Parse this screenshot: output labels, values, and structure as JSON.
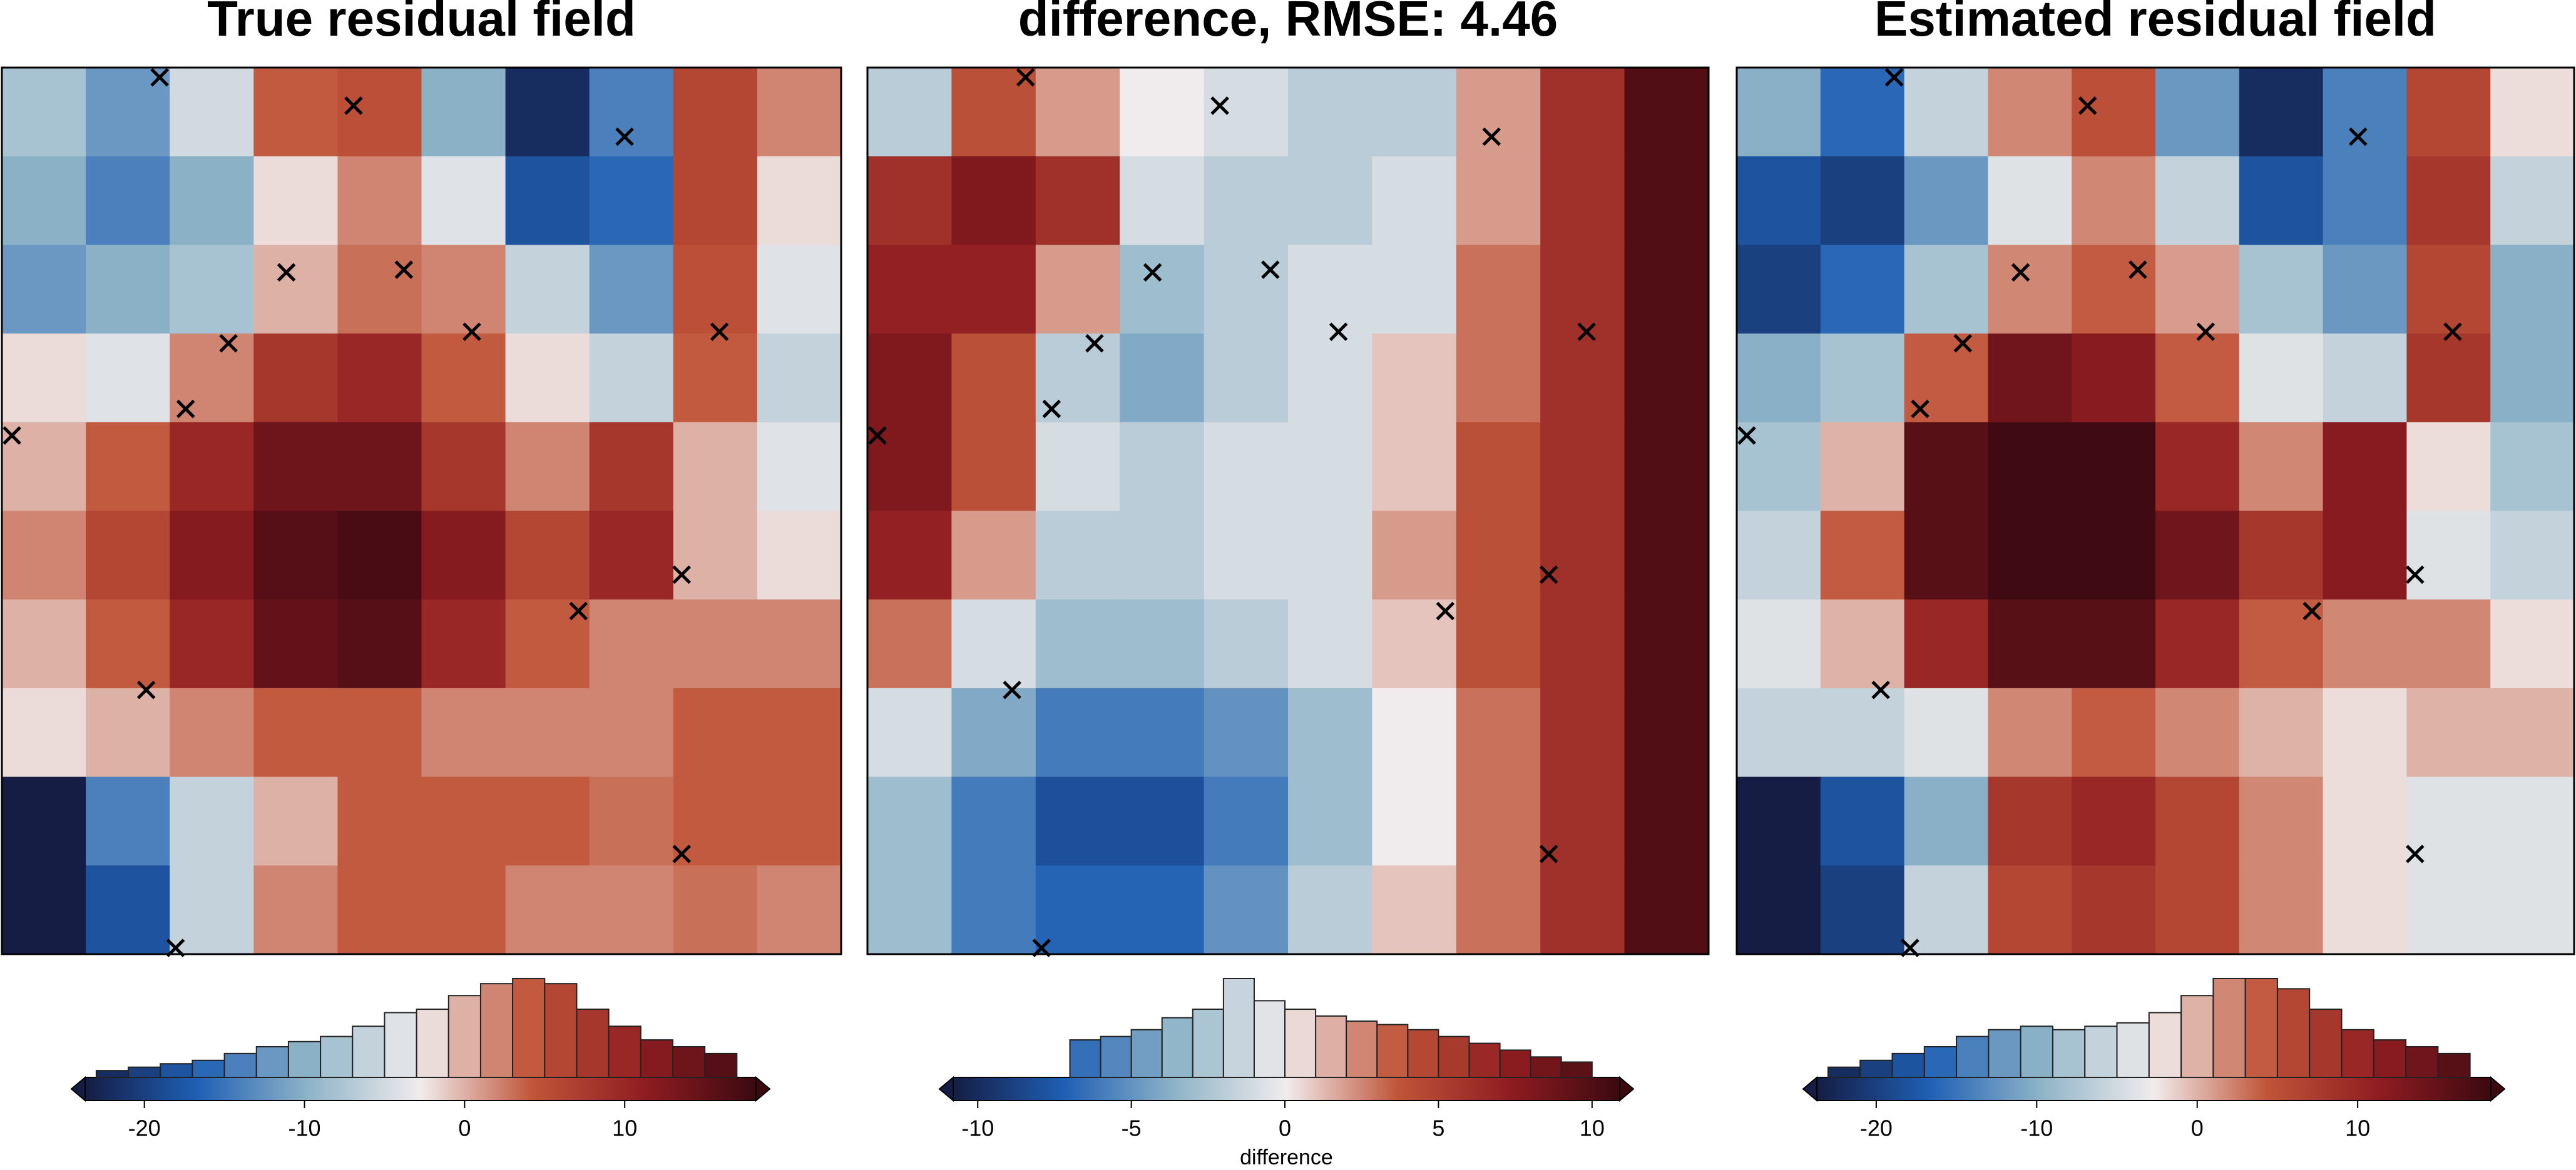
{
  "chart_data": [
    {
      "type": "heatmap",
      "title": "True residual field",
      "colors": [
        "#151d44",
        "#1f5fb4",
        "#8fb4c8",
        "#f1ecec",
        "#c0553a",
        "#8f1d21",
        "#3c0911"
      ],
      "values": [
        [
          -8,
          -12,
          -5,
          4,
          5,
          -10,
          -22,
          -14,
          6,
          2
        ],
        [
          -10,
          -14,
          -10,
          -2,
          2,
          -4,
          -18,
          -16,
          6,
          -2
        ],
        [
          -12,
          -10,
          -8,
          0,
          3,
          2,
          -6,
          -12,
          5,
          -4
        ],
        [
          -2,
          -4,
          2,
          8,
          10,
          4,
          -2,
          -6,
          4,
          -6
        ],
        [
          0,
          4,
          10,
          14,
          14,
          8,
          2,
          8,
          0,
          -4
        ],
        [
          2,
          6,
          12,
          16,
          17,
          12,
          6,
          10,
          0,
          -2
        ],
        [
          0,
          4,
          10,
          15,
          16,
          10,
          4,
          2,
          2,
          2
        ],
        [
          -2,
          0,
          2,
          4,
          4,
          2,
          2,
          2,
          4,
          4
        ],
        [
          -24,
          -14,
          -6,
          0,
          4,
          4,
          4,
          3,
          4,
          4
        ],
        [
          -24,
          -18,
          -6,
          2,
          4,
          4,
          2,
          2,
          3,
          2
        ]
      ],
      "points": {
        "x": [
          1.88,
          4.19,
          7.42,
          3.39,
          4.79,
          5.6,
          8.55,
          2.7,
          2.19,
          0.12,
          8.1,
          6.87,
          1.72,
          8.1,
          2.07
        ],
        "y": [
          0.11,
          0.43,
          0.78,
          2.31,
          2.28,
          2.98,
          2.98,
          3.11,
          3.85,
          4.15,
          5.72,
          6.13,
          7.02,
          8.87,
          9.93
        ]
      },
      "colorbar": {
        "vlim": [
          -23.7,
          18.2
        ],
        "ticks": [
          -20,
          -10,
          0,
          10
        ]
      },
      "histogram": {
        "bins": [
          -23,
          -21,
          -19,
          -17,
          -15,
          -13,
          -11,
          -9,
          -7,
          -5,
          -3,
          -1,
          1,
          3,
          5,
          7,
          9,
          11,
          13,
          15,
          17
        ],
        "counts": [
          4,
          6,
          8,
          10,
          14,
          18,
          21,
          24,
          30,
          38,
          40,
          48,
          55,
          58,
          55,
          40,
          30,
          22,
          18,
          14
        ]
      }
    },
    {
      "type": "heatmap",
      "title": "difference, RMSE: 4.46",
      "colors": [
        "#151d44",
        "#1f5fb4",
        "#8fb4c8",
        "#f1ecec",
        "#c0553a",
        "#8f1d21",
        "#3c0911"
      ],
      "values": [
        [
          -2,
          4,
          2,
          0,
          -1,
          -2,
          -2,
          2,
          6,
          10
        ],
        [
          6,
          8,
          6,
          -1,
          -2,
          -2,
          -1,
          2,
          6,
          10
        ],
        [
          7,
          7,
          2,
          -3,
          -2,
          -1,
          -1,
          3,
          6,
          10
        ],
        [
          8,
          4,
          -2,
          -4,
          -2,
          -1,
          1,
          3,
          6,
          10
        ],
        [
          8,
          4,
          -1,
          -2,
          -1,
          -1,
          1,
          4,
          6,
          10
        ],
        [
          7,
          2,
          -2,
          -2,
          -1,
          -1,
          2,
          4,
          6,
          10
        ],
        [
          3,
          -1,
          -3,
          -3,
          -2,
          -1,
          1,
          4,
          6,
          10
        ],
        [
          -1,
          -4,
          -6,
          -6,
          -5,
          -3,
          0,
          3,
          6,
          10
        ],
        [
          -3,
          -6,
          -8,
          -8,
          -6,
          -3,
          0,
          3,
          6,
          10
        ],
        [
          -3,
          -6,
          -7,
          -7,
          -5,
          -2,
          1,
          3,
          6,
          10
        ]
      ],
      "points": {
        "x": [
          1.88,
          4.19,
          7.42,
          3.39,
          4.79,
          5.6,
          8.55,
          2.7,
          2.19,
          0.12,
          8.1,
          6.87,
          1.72,
          8.1,
          2.07
        ],
        "y": [
          0.11,
          0.43,
          0.78,
          2.31,
          2.28,
          2.98,
          2.98,
          3.11,
          3.85,
          4.15,
          5.72,
          6.13,
          7.02,
          8.87,
          9.93
        ]
      },
      "colorbar": {
        "vlim": [
          -10.8,
          10.9
        ],
        "ticks": [
          -10,
          -5,
          0,
          5,
          10
        ],
        "label": "difference"
      },
      "histogram": {
        "bins": [
          -7,
          -6,
          -5,
          -4,
          -3,
          -2,
          -1,
          0,
          1,
          2,
          3,
          4,
          5,
          6,
          7,
          8,
          9,
          10
        ],
        "counts": [
          22,
          24,
          28,
          35,
          40,
          58,
          45,
          40,
          36,
          33,
          31,
          28,
          24,
          20,
          16,
          12,
          9
        ]
      }
    },
    {
      "type": "heatmap",
      "title": "Estimated residual field",
      "colors": [
        "#151d44",
        "#1f5fb4",
        "#8fb4c8",
        "#f1ecec",
        "#c0553a",
        "#8f1d21",
        "#3c0911"
      ],
      "values": [
        [
          -10,
          -16,
          -6,
          2,
          5,
          -12,
          -22,
          -14,
          6,
          -2
        ],
        [
          -18,
          -20,
          -12,
          -4,
          2,
          -6,
          -18,
          -14,
          8,
          -6
        ],
        [
          -20,
          -16,
          -8,
          2,
          4,
          1,
          -8,
          -12,
          6,
          -10
        ],
        [
          -10,
          -8,
          4,
          14,
          12,
          4,
          -4,
          -6,
          8,
          -10
        ],
        [
          -8,
          0,
          16,
          18,
          18,
          10,
          2,
          12,
          -2,
          -8
        ],
        [
          -6,
          4,
          16,
          18,
          18,
          14,
          8,
          12,
          -4,
          -6
        ],
        [
          -4,
          0,
          10,
          16,
          16,
          10,
          4,
          2,
          2,
          -2
        ],
        [
          -6,
          -6,
          -4,
          2,
          4,
          2,
          0,
          -2,
          0,
          0
        ],
        [
          -24,
          -18,
          -10,
          8,
          10,
          6,
          2,
          -2,
          -4,
          -4
        ],
        [
          -24,
          -20,
          -6,
          6,
          8,
          6,
          2,
          -2,
          -4,
          -4
        ]
      ],
      "points": {
        "x": [
          1.88,
          4.19,
          7.42,
          3.39,
          4.79,
          5.6,
          8.55,
          2.7,
          2.19,
          0.12,
          8.1,
          6.87,
          1.72,
          8.1,
          2.07
        ],
        "y": [
          0.11,
          0.43,
          0.78,
          2.31,
          2.28,
          2.98,
          2.98,
          3.11,
          3.85,
          4.15,
          5.72,
          6.13,
          7.02,
          8.87,
          9.93
        ]
      },
      "colorbar": {
        "vlim": [
          -23.7,
          18.3
        ],
        "ticks": [
          -20,
          -10,
          0,
          10
        ]
      },
      "histogram": {
        "bins": [
          -23,
          -21,
          -19,
          -17,
          -15,
          -13,
          -11,
          -9,
          -7,
          -5,
          -3,
          -1,
          1,
          3,
          5,
          7,
          9,
          11,
          13,
          15,
          17
        ],
        "counts": [
          6,
          10,
          14,
          18,
          24,
          28,
          30,
          28,
          30,
          32,
          38,
          48,
          58,
          58,
          52,
          40,
          28,
          22,
          18,
          14
        ]
      }
    }
  ]
}
